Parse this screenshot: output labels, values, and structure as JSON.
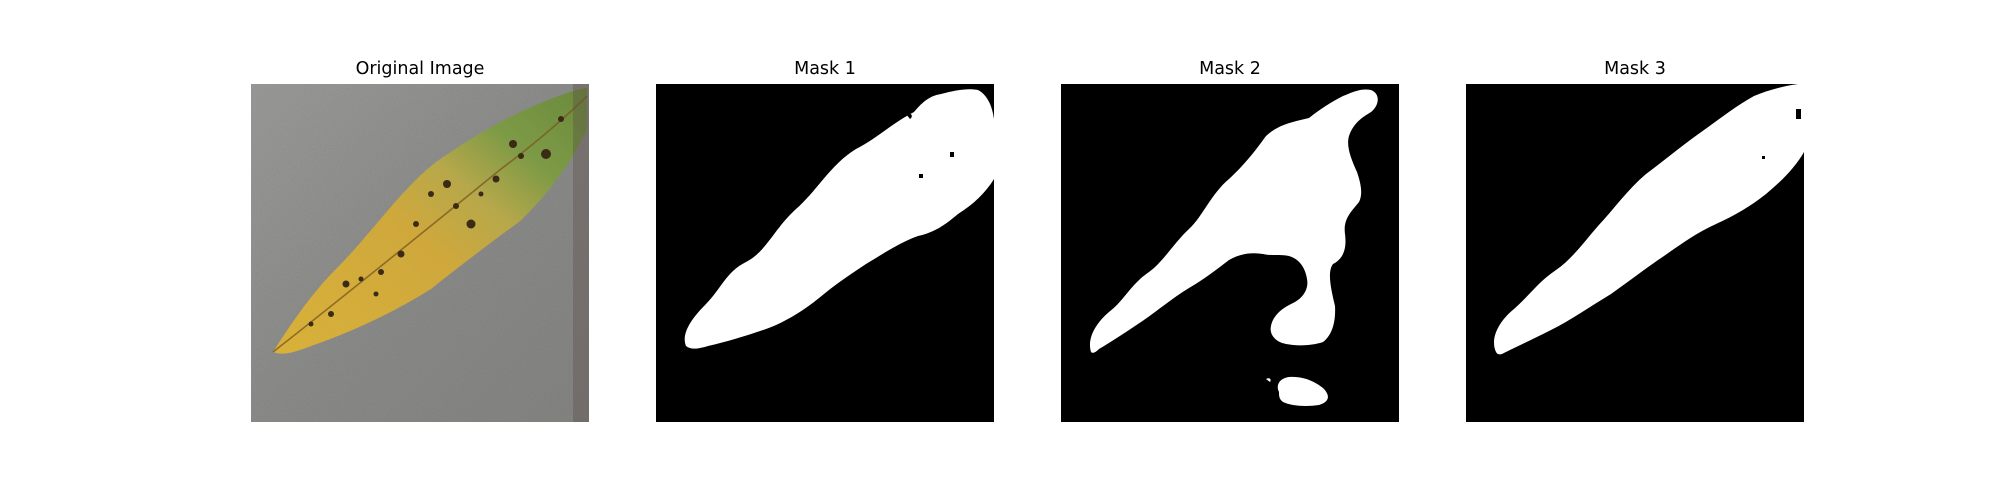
{
  "figure": {
    "panels": [
      {
        "title": "Original Image",
        "image": "leaf-photo"
      },
      {
        "title": "Mask 1",
        "image": "binary-segmentation-mask"
      },
      {
        "title": "Mask 2",
        "image": "binary-segmentation-mask"
      },
      {
        "title": "Mask 3",
        "image": "binary-segmentation-mask"
      }
    ]
  },
  "colors": {
    "background": "#ffffff",
    "mask_foreground": "#ffffff",
    "mask_background": "#000000",
    "photo_background": "#8f8f8d",
    "leaf_yellow": "#c9a63a",
    "leaf_green": "#6f8f3e"
  }
}
